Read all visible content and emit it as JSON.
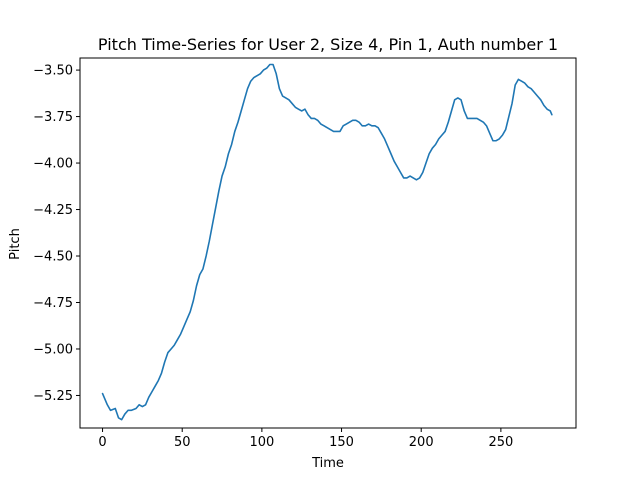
{
  "chart_data": {
    "type": "line",
    "title": "Pitch Time-Series for User 2, Size 4, Pin 1, Auth number 1",
    "xlabel": "Time",
    "ylabel": "Pitch",
    "xlim": [
      -14.15,
      297.15
    ],
    "ylim": [
      -5.425,
      -3.435
    ],
    "xticks": [
      0,
      50,
      100,
      150,
      200,
      250
    ],
    "xtick_labels": [
      "0",
      "50",
      "100",
      "150",
      "200",
      "250"
    ],
    "yticks": [
      -5.25,
      -5.0,
      -4.75,
      -4.5,
      -4.25,
      -4.0,
      -3.75,
      -3.5
    ],
    "ytick_labels": [
      "−5.25",
      "−5.00",
      "−4.75",
      "−4.50",
      "−4.25",
      "−4.00",
      "−3.75",
      "−3.50"
    ],
    "grid": false,
    "legend": false,
    "series": [
      {
        "color": "#1f77b4",
        "x": [
          0,
          3,
          5,
          8,
          10,
          12,
          14,
          16,
          18,
          21,
          23,
          25,
          27,
          29,
          31,
          33,
          35,
          37,
          39,
          41,
          43,
          45,
          47,
          49,
          51,
          53,
          55,
          57,
          59,
          61,
          63,
          65,
          67,
          69,
          71,
          73,
          75,
          77,
          79,
          81,
          83,
          85,
          87,
          89,
          91,
          93,
          95,
          97,
          99,
          101,
          103,
          105,
          107,
          109,
          111,
          113,
          115,
          117,
          119,
          121,
          123,
          125,
          127,
          129,
          131,
          133,
          135,
          137,
          139,
          141,
          143,
          145,
          147,
          149,
          151,
          153,
          155,
          157,
          159,
          161,
          163,
          165,
          167,
          169,
          171,
          173,
          175,
          177,
          179,
          181,
          183,
          185,
          187,
          189,
          191,
          193,
          195,
          197,
          199,
          201,
          203,
          205,
          207,
          209,
          211,
          213,
          215,
          217,
          219,
          221,
          223,
          225,
          227,
          229,
          231,
          233,
          235,
          237,
          239,
          241,
          243,
          245,
          247,
          249,
          251,
          253,
          255,
          257,
          259,
          261,
          263,
          265,
          267,
          269,
          271,
          273,
          275,
          277,
          279,
          281,
          282
        ],
        "values": [
          -5.24,
          -5.3,
          -5.33,
          -5.32,
          -5.37,
          -5.38,
          -5.35,
          -5.33,
          -5.33,
          -5.32,
          -5.3,
          -5.31,
          -5.3,
          -5.26,
          -5.23,
          -5.2,
          -5.17,
          -5.13,
          -5.07,
          -5.02,
          -5.0,
          -4.98,
          -4.95,
          -4.92,
          -4.88,
          -4.84,
          -4.8,
          -4.74,
          -4.66,
          -4.6,
          -4.57,
          -4.5,
          -4.42,
          -4.33,
          -4.24,
          -4.15,
          -4.07,
          -4.02,
          -3.95,
          -3.9,
          -3.83,
          -3.78,
          -3.72,
          -3.66,
          -3.6,
          -3.56,
          -3.54,
          -3.53,
          -3.52,
          -3.5,
          -3.49,
          -3.47,
          -3.47,
          -3.52,
          -3.6,
          -3.64,
          -3.65,
          -3.66,
          -3.68,
          -3.7,
          -3.71,
          -3.72,
          -3.71,
          -3.74,
          -3.76,
          -3.76,
          -3.77,
          -3.79,
          -3.8,
          -3.81,
          -3.82,
          -3.83,
          -3.83,
          -3.83,
          -3.8,
          -3.79,
          -3.78,
          -3.77,
          -3.77,
          -3.78,
          -3.8,
          -3.8,
          -3.79,
          -3.8,
          -3.8,
          -3.81,
          -3.84,
          -3.87,
          -3.91,
          -3.95,
          -3.99,
          -4.02,
          -4.05,
          -4.08,
          -4.08,
          -4.07,
          -4.08,
          -4.09,
          -4.08,
          -4.05,
          -4.0,
          -3.95,
          -3.92,
          -3.9,
          -3.87,
          -3.85,
          -3.83,
          -3.78,
          -3.72,
          -3.66,
          -3.65,
          -3.66,
          -3.72,
          -3.76,
          -3.76,
          -3.76,
          -3.76,
          -3.77,
          -3.78,
          -3.8,
          -3.84,
          -3.88,
          -3.88,
          -3.87,
          -3.85,
          -3.82,
          -3.75,
          -3.68,
          -3.58,
          -3.55,
          -3.56,
          -3.57,
          -3.59,
          -3.6,
          -3.62,
          -3.64,
          -3.66,
          -3.69,
          -3.71,
          -3.72,
          -3.74
        ]
      }
    ]
  }
}
